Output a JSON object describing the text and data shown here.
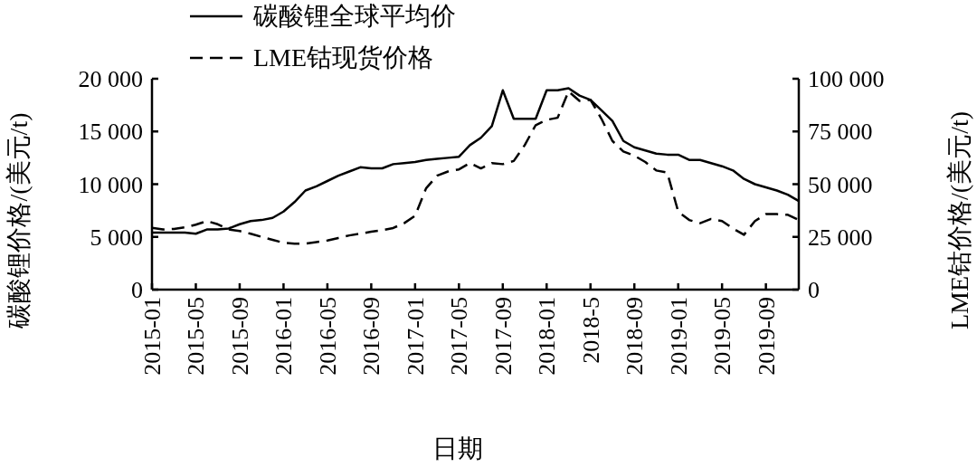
{
  "chart_data": {
    "type": "line",
    "xlabel": "日期",
    "ylabel": "碳酸锂价格/(美元/t)",
    "y2label": "LME钴价格/(美元/t)",
    "x": [
      "2015-01",
      "2015-02",
      "2015-03",
      "2015-04",
      "2015-05",
      "2015-06",
      "2015-07",
      "2015-08",
      "2015-09",
      "2015-10",
      "2015-11",
      "2015-12",
      "2016-01",
      "2016-02",
      "2016-03",
      "2016-04",
      "2016-05",
      "2016-06",
      "2016-07",
      "2016-08",
      "2016-09",
      "2016-10",
      "2016-11",
      "2016-12",
      "2017-01",
      "2017-02",
      "2017-03",
      "2017-04",
      "2017-05",
      "2017-06",
      "2017-07",
      "2017-08",
      "2017-09",
      "2017-10",
      "2017-11",
      "2017-12",
      "2018-01",
      "2018-02",
      "2018-03",
      "2018-04",
      "2018-05",
      "2018-06",
      "2018-07",
      "2018-08",
      "2018-09",
      "2018-10",
      "2018-11",
      "2018-12",
      "2019-01",
      "2019-02",
      "2019-03",
      "2019-04",
      "2019-05",
      "2019-06",
      "2019-07",
      "2019-08",
      "2019-09",
      "2019-10",
      "2019-11",
      "2019-12"
    ],
    "xlim": [
      "2015-01",
      "2019-12"
    ],
    "xticks": [
      {
        "value": "2015-01",
        "label": "2015-01"
      },
      {
        "value": "2015-05",
        "label": "2015-05"
      },
      {
        "value": "2015-09",
        "label": "2015-09"
      },
      {
        "value": "2016-01",
        "label": "2016-01"
      },
      {
        "value": "2016-05",
        "label": "2016-05"
      },
      {
        "value": "2016-09",
        "label": "2016-09"
      },
      {
        "value": "2017-01",
        "label": "2017-01"
      },
      {
        "value": "2017-05",
        "label": "2017-05"
      },
      {
        "value": "2017-09",
        "label": "2017-09"
      },
      {
        "value": "2018-01",
        "label": "2018-01"
      },
      {
        "value": "2018-05",
        "label": "2018-5"
      },
      {
        "value": "2018-09",
        "label": "2018-09"
      },
      {
        "value": "2019-01",
        "label": "2019-01"
      },
      {
        "value": "2019-05",
        "label": "2019-05"
      },
      {
        "value": "2019-09",
        "label": "2019-09"
      }
    ],
    "ylim": [
      0,
      20000
    ],
    "yticks": [
      0,
      {
        "value": 5000,
        "label": "5 000"
      },
      {
        "value": 10000,
        "label": "10 000"
      },
      {
        "value": 15000,
        "label": "15 000"
      },
      {
        "value": 20000,
        "label": "20 000"
      }
    ],
    "y2lim": [
      0,
      100000
    ],
    "y2ticks": [
      0,
      {
        "value": 25000,
        "label": "25 000"
      },
      {
        "value": 50000,
        "label": "50 000"
      },
      {
        "value": 75000,
        "label": "75 000"
      },
      {
        "value": 100000,
        "label": "100 000"
      }
    ],
    "legend": "top left",
    "grid": false,
    "marker": "none",
    "series": [
      {
        "name": "碳酸锂全球平均价",
        "color": "#000000",
        "line_style": "solid",
        "values": [
          5400,
          5400,
          5400,
          5400,
          5300,
          5700,
          5700,
          5800,
          6200,
          6500,
          6600,
          6800,
          7400,
          8300,
          9400,
          9800,
          10300,
          10800,
          11200,
          11600,
          11500,
          11500,
          11900,
          12000,
          12100,
          12300,
          12400,
          12500,
          12600,
          13700,
          14400,
          15500,
          18900,
          16200,
          16200,
          16200,
          18900,
          18900,
          19100,
          18400,
          18000,
          17000,
          16000,
          14100,
          13500,
          13200,
          12900,
          12800,
          12800,
          12300,
          12300,
          12000,
          11700,
          11300,
          10500,
          10000,
          9700,
          9400,
          9000,
          8400
        ]
      },
      {
        "name": "LME钴现货价格",
        "color": "#000000",
        "line_style": "dashed",
        "axis": "y2",
        "values": [
          29300,
          28500,
          28800,
          29500,
          30800,
          32500,
          31000,
          28500,
          27800,
          26500,
          25000,
          23600,
          22200,
          21800,
          21800,
          22500,
          23300,
          24500,
          25700,
          26500,
          27500,
          28200,
          29200,
          31500,
          35000,
          48000,
          54000,
          56000,
          57000,
          60000,
          57500,
          60000,
          59500,
          61000,
          68500,
          78000,
          80500,
          81500,
          94000,
          89500,
          90000,
          81000,
          70500,
          65500,
          63500,
          60500,
          56500,
          55500,
          37000,
          33000,
          31500,
          33500,
          32500,
          29000,
          26000,
          32500,
          35800,
          35800,
          35500,
          33000
        ]
      }
    ]
  }
}
